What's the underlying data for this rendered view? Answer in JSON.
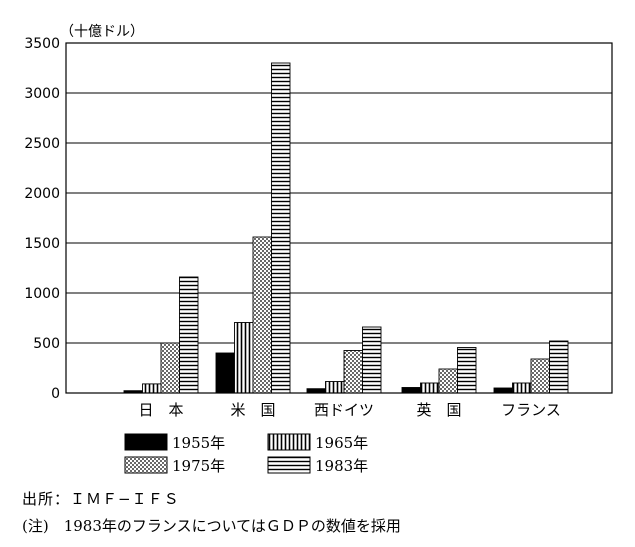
{
  "chart_data": {
    "type": "bar",
    "unit_label": "（十億ドル）",
    "categories": [
      "日　本",
      "米　国",
      "西ドイツ",
      "英　国",
      "フランス"
    ],
    "series": [
      {
        "name": "1955年",
        "values": [
          23,
          400,
          43,
          55,
          50
        ],
        "pattern": "solid"
      },
      {
        "name": "1965年",
        "values": [
          91,
          705,
          115,
          100,
          100
        ],
        "pattern": "vertical"
      },
      {
        "name": "1975年",
        "values": [
          500,
          1560,
          425,
          240,
          340
        ],
        "pattern": "dots"
      },
      {
        "name": "1983年",
        "values": [
          1160,
          3300,
          660,
          455,
          520
        ],
        "pattern": "horizontal"
      }
    ],
    "y_ticks": [
      "0",
      "500",
      "1000",
      "1500",
      "2000",
      "2500",
      "3000",
      "3500"
    ],
    "ylim": [
      0,
      3500
    ],
    "grid": true,
    "legend_position": "bottom"
  },
  "footer": {
    "source": "出所：ＩＭＦ−ＩＦＳ",
    "note": "(注)　1983年のフランスについてはＧＤＰの数値を採用"
  }
}
